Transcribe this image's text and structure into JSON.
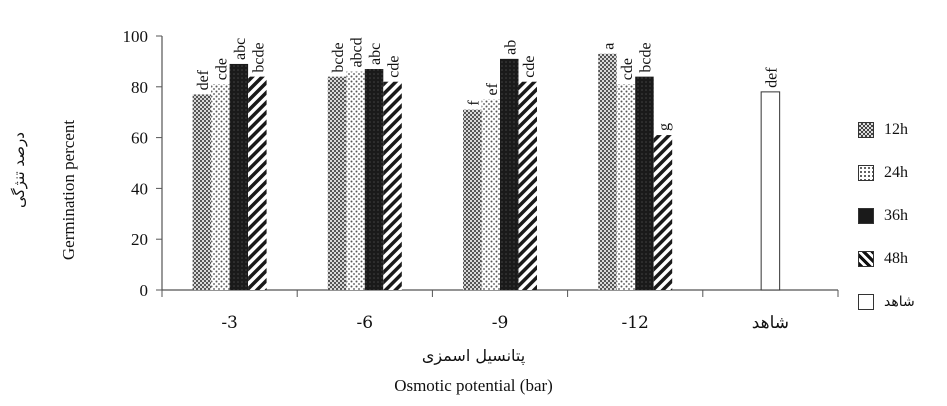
{
  "chart_data": {
    "type": "bar",
    "title": "",
    "ylabel": "Germination percent",
    "ylabel_fa": "درصد تنژگی",
    "xlabel_fa": "پتانسیل اسمزی",
    "xlabel": "Osmotic potential (bar)",
    "ylim": [
      0,
      100
    ],
    "yticks": [
      "0",
      "20",
      "40",
      "60",
      "80",
      "100"
    ],
    "categories": [
      "-3",
      "-6",
      "-9",
      "-12",
      "شاهد"
    ],
    "series": [
      {
        "name": "12h",
        "pattern": "checker",
        "values": [
          77,
          84,
          71,
          93,
          null
        ],
        "letters": [
          "def",
          "bcde",
          "f",
          "a",
          ""
        ]
      },
      {
        "name": "24h",
        "pattern": "dots",
        "values": [
          81,
          86,
          75,
          81,
          null
        ],
        "letters": [
          "cde",
          "abcd",
          "ef",
          "cde",
          ""
        ]
      },
      {
        "name": "36h",
        "pattern": "dark",
        "values": [
          89,
          87,
          91,
          84,
          null
        ],
        "letters": [
          "abc",
          "abc",
          "ab",
          "bcde",
          ""
        ]
      },
      {
        "name": "48h",
        "pattern": "diagonal",
        "values": [
          84,
          82,
          82,
          61,
          null
        ],
        "letters": [
          "bcde",
          "cde",
          "cde",
          "g",
          ""
        ]
      },
      {
        "name": "شاهد",
        "pattern": "white",
        "values": [
          null,
          null,
          null,
          null,
          78
        ],
        "letters": [
          "",
          "",
          "",
          "",
          "def"
        ]
      }
    ],
    "legend_position": "right",
    "grid": false
  }
}
